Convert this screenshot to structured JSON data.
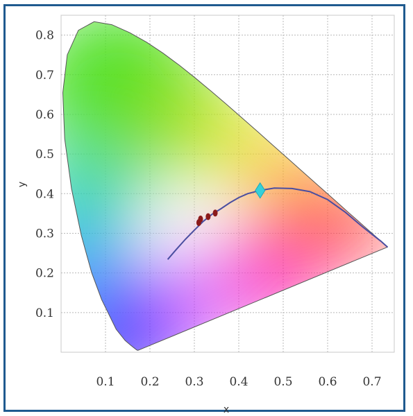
{
  "chart_data": {
    "type": "scatter",
    "title": "",
    "xlabel": "x",
    "ylabel": "y",
    "xlim": [
      0.0,
      0.75
    ],
    "ylim": [
      0.0,
      0.85
    ],
    "x_ticks": [
      "0.1",
      "0.2",
      "0.3",
      "0.4",
      "0.5",
      "0.6",
      "0.7"
    ],
    "y_ticks": [
      "0.1",
      "0.2",
      "0.3",
      "0.4",
      "0.5",
      "0.6",
      "0.7",
      "0.8"
    ],
    "grid": true,
    "legend": "none",
    "series": [
      {
        "kind": "points",
        "marker": "dot",
        "color": "#8b1a1a",
        "points": [
          {
            "x": 0.31,
            "y": 0.327
          },
          {
            "x": 0.314,
            "y": 0.336
          },
          {
            "x": 0.331,
            "y": 0.342
          },
          {
            "x": 0.347,
            "y": 0.351
          }
        ]
      },
      {
        "kind": "points",
        "marker": "diamond",
        "color": "#35d0d8",
        "points": [
          {
            "x": 0.448,
            "y": 0.408
          }
        ]
      },
      {
        "kind": "curve",
        "color": "#4a4ea0",
        "points": [
          {
            "x": 0.24,
            "y": 0.234
          },
          {
            "x": 0.26,
            "y": 0.26
          },
          {
            "x": 0.28,
            "y": 0.285
          },
          {
            "x": 0.3,
            "y": 0.308
          },
          {
            "x": 0.32,
            "y": 0.33
          },
          {
            "x": 0.34,
            "y": 0.348
          },
          {
            "x": 0.36,
            "y": 0.362
          },
          {
            "x": 0.38,
            "y": 0.377
          },
          {
            "x": 0.4,
            "y": 0.39
          },
          {
            "x": 0.42,
            "y": 0.4
          },
          {
            "x": 0.448,
            "y": 0.408
          },
          {
            "x": 0.48,
            "y": 0.414
          },
          {
            "x": 0.52,
            "y": 0.413
          },
          {
            "x": 0.56,
            "y": 0.405
          },
          {
            "x": 0.6,
            "y": 0.385
          },
          {
            "x": 0.64,
            "y": 0.353
          },
          {
            "x": 0.68,
            "y": 0.315
          },
          {
            "x": 0.72,
            "y": 0.28
          },
          {
            "x": 0.735,
            "y": 0.265
          }
        ]
      }
    ],
    "locus": [
      {
        "x": 0.1741,
        "y": 0.005
      },
      {
        "x": 0.1738,
        "y": 0.0049
      },
      {
        "x": 0.1736,
        "y": 0.005
      },
      {
        "x": 0.173,
        "y": 0.0048
      },
      {
        "x": 0.1726,
        "y": 0.0048
      },
      {
        "x": 0.1714,
        "y": 0.0051
      },
      {
        "x": 0.1689,
        "y": 0.0069
      },
      {
        "x": 0.1644,
        "y": 0.0109
      },
      {
        "x": 0.1566,
        "y": 0.0177
      },
      {
        "x": 0.144,
        "y": 0.0297
      },
      {
        "x": 0.1241,
        "y": 0.0578
      },
      {
        "x": 0.0913,
        "y": 0.1327
      },
      {
        "x": 0.0687,
        "y": 0.2007
      },
      {
        "x": 0.0454,
        "y": 0.295
      },
      {
        "x": 0.0235,
        "y": 0.4127
      },
      {
        "x": 0.0082,
        "y": 0.5384
      },
      {
        "x": 0.0039,
        "y": 0.6548
      },
      {
        "x": 0.0139,
        "y": 0.7502
      },
      {
        "x": 0.0389,
        "y": 0.812
      },
      {
        "x": 0.0743,
        "y": 0.8338
      },
      {
        "x": 0.1142,
        "y": 0.8262
      },
      {
        "x": 0.1547,
        "y": 0.8059
      },
      {
        "x": 0.1929,
        "y": 0.7816
      },
      {
        "x": 0.2296,
        "y": 0.7543
      },
      {
        "x": 0.2658,
        "y": 0.7243
      },
      {
        "x": 0.3016,
        "y": 0.6923
      },
      {
        "x": 0.3373,
        "y": 0.6589
      },
      {
        "x": 0.3731,
        "y": 0.6245
      },
      {
        "x": 0.4087,
        "y": 0.5896
      },
      {
        "x": 0.4441,
        "y": 0.5547
      },
      {
        "x": 0.4788,
        "y": 0.5202
      },
      {
        "x": 0.5125,
        "y": 0.4866
      },
      {
        "x": 0.5448,
        "y": 0.4544
      },
      {
        "x": 0.5752,
        "y": 0.4242
      },
      {
        "x": 0.6029,
        "y": 0.3965
      },
      {
        "x": 0.627,
        "y": 0.3725
      },
      {
        "x": 0.6482,
        "y": 0.3514
      },
      {
        "x": 0.6658,
        "y": 0.334
      },
      {
        "x": 0.6801,
        "y": 0.3197
      },
      {
        "x": 0.6915,
        "y": 0.3083
      },
      {
        "x": 0.7006,
        "y": 0.2993
      },
      {
        "x": 0.7079,
        "y": 0.292
      },
      {
        "x": 0.714,
        "y": 0.2859
      },
      {
        "x": 0.719,
        "y": 0.2809
      },
      {
        "x": 0.723,
        "y": 0.277
      },
      {
        "x": 0.726,
        "y": 0.274
      },
      {
        "x": 0.7283,
        "y": 0.2717
      },
      {
        "x": 0.73,
        "y": 0.27
      },
      {
        "x": 0.7347,
        "y": 0.2653
      }
    ]
  }
}
